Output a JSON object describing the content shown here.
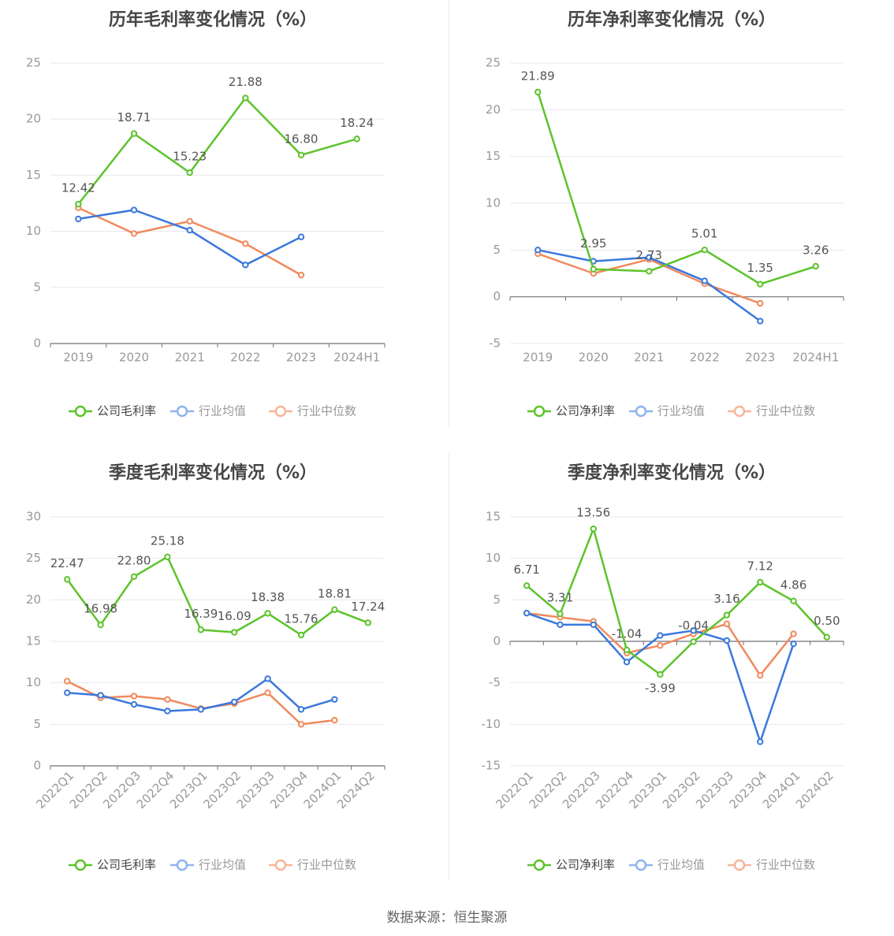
{
  "source_text": "数据来源：恒生聚源",
  "legend_common": [
    "行业均值",
    "行业中位数"
  ],
  "colors": {
    "company": "#5dc32b",
    "industry_avg": "#3a78dc",
    "industry_median": "#f08a5d",
    "legend_avg": "#8eb4ef",
    "legend_median": "#f7b59a",
    "grid": "#e6e8ef",
    "axis": "#6e7079",
    "tick_text": "#999999",
    "label_text": "#555555",
    "title_text": "#464646"
  },
  "chart_data": [
    {
      "id": "annual-gross",
      "type": "line",
      "title": "历年毛利率变化情况（%）",
      "categories": [
        "2019",
        "2020",
        "2021",
        "2022",
        "2023",
        "2024H1"
      ],
      "ylim": [
        0,
        25
      ],
      "yticks": [
        0,
        5,
        10,
        15,
        20,
        25
      ],
      "rotate_x": false,
      "series": [
        {
          "name": "公司毛利率",
          "key": "company",
          "values": [
            12.42,
            18.71,
            15.23,
            21.88,
            16.8,
            18.24
          ],
          "labels": [
            "12.42",
            "18.71",
            "15.23",
            "21.88",
            "16.80",
            "18.24"
          ]
        },
        {
          "name": "行业均值",
          "key": "industry_avg",
          "values": [
            11.1,
            11.9,
            10.1,
            7.0,
            9.5,
            null
          ]
        },
        {
          "name": "行业中位数",
          "key": "industry_median",
          "values": [
            12.1,
            9.8,
            10.9,
            8.9,
            6.1,
            null
          ]
        }
      ]
    },
    {
      "id": "annual-net",
      "type": "line",
      "title": "历年净利率变化情况（%）",
      "categories": [
        "2019",
        "2020",
        "2021",
        "2022",
        "2023",
        "2024H1"
      ],
      "ylim": [
        -5,
        25
      ],
      "yticks": [
        -5,
        0,
        5,
        10,
        15,
        20,
        25
      ],
      "rotate_x": false,
      "series": [
        {
          "name": "公司净利率",
          "key": "company",
          "values": [
            21.89,
            2.95,
            2.73,
            5.01,
            1.35,
            3.26
          ],
          "labels": [
            "21.89",
            "2.95",
            "2.73",
            "5.01",
            "1.35",
            "3.26"
          ]
        },
        {
          "name": "行业均值",
          "key": "industry_avg",
          "values": [
            5.0,
            3.8,
            4.2,
            1.7,
            -2.6,
            null
          ]
        },
        {
          "name": "行业中位数",
          "key": "industry_median",
          "values": [
            4.6,
            2.5,
            4.0,
            1.4,
            -0.7,
            null
          ]
        }
      ]
    },
    {
      "id": "quarterly-gross",
      "type": "line",
      "title": "季度毛利率变化情况（%）",
      "categories": [
        "2022Q1",
        "2022Q2",
        "2022Q3",
        "2022Q4",
        "2023Q1",
        "2023Q2",
        "2023Q3",
        "2023Q4",
        "2024Q1",
        "2024Q2"
      ],
      "ylim": [
        0,
        30
      ],
      "yticks": [
        0,
        5,
        10,
        15,
        20,
        25,
        30
      ],
      "rotate_x": true,
      "series": [
        {
          "name": "公司毛利率",
          "key": "company",
          "values": [
            22.47,
            16.98,
            22.8,
            25.18,
            16.39,
            16.09,
            18.38,
            15.76,
            18.81,
            17.24
          ],
          "labels": [
            "22.47",
            "16.98",
            "22.80",
            "25.18",
            "16.39",
            "16.09",
            "18.38",
            "15.76",
            "18.81",
            "17.24"
          ]
        },
        {
          "name": "行业均值",
          "key": "industry_avg",
          "values": [
            8.8,
            8.5,
            7.4,
            6.6,
            6.8,
            7.7,
            10.5,
            6.8,
            8.0,
            null
          ]
        },
        {
          "name": "行业中位数",
          "key": "industry_median",
          "values": [
            10.2,
            8.2,
            8.4,
            8.0,
            6.9,
            7.5,
            8.8,
            5.0,
            5.5,
            null
          ]
        }
      ]
    },
    {
      "id": "quarterly-net",
      "type": "line",
      "title": "季度净利率变化情况（%）",
      "categories": [
        "2022Q1",
        "2022Q2",
        "2022Q3",
        "2022Q4",
        "2023Q1",
        "2023Q2",
        "2023Q3",
        "2023Q4",
        "2024Q1",
        "2024Q2"
      ],
      "ylim": [
        -15,
        15
      ],
      "yticks": [
        -15,
        -10,
        -5,
        0,
        5,
        10,
        15
      ],
      "rotate_x": true,
      "series": [
        {
          "name": "公司净利率",
          "key": "company",
          "values": [
            6.71,
            3.31,
            13.56,
            -1.04,
            -3.99,
            -0.04,
            3.16,
            7.12,
            4.86,
            0.5
          ],
          "labels": [
            "6.71",
            "3.31",
            "13.56",
            "-1.04",
            "-3.99",
            "-0.04",
            "3.16",
            "7.12",
            "4.86",
            "0.50"
          ]
        },
        {
          "name": "行业均值",
          "key": "industry_avg",
          "values": [
            3.4,
            2.0,
            2.0,
            -2.5,
            0.7,
            1.3,
            0.1,
            -12.1,
            -0.3,
            null
          ]
        },
        {
          "name": "行业中位数",
          "key": "industry_median",
          "values": [
            3.4,
            2.9,
            2.4,
            -1.4,
            -0.5,
            0.9,
            2.1,
            -4.1,
            0.9,
            null
          ]
        }
      ]
    }
  ]
}
